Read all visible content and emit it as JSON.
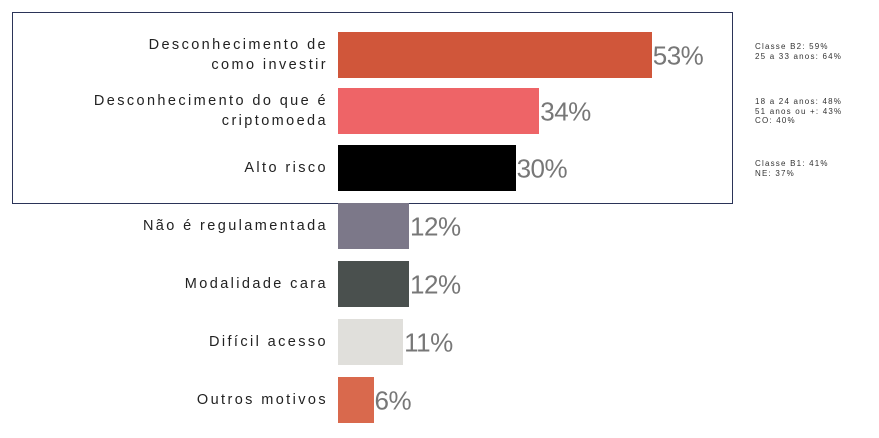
{
  "chart_data": {
    "type": "bar",
    "categories": [
      "Desconhecimento de\ncomo investir",
      "Desconhecimento do que é\ncriptomoeda",
      "Alto risco",
      "Não é regulamentada",
      "Modalidade cara",
      "Difícil acesso",
      "Outros motivos"
    ],
    "values": [
      53,
      34,
      30,
      12,
      12,
      11,
      6
    ],
    "value_labels": [
      "53%",
      "34%",
      "30%",
      "12%",
      "12%",
      "11%",
      "6%"
    ],
    "colors": [
      "#d0563a",
      "#ee6467",
      "#000000",
      "#7c7889",
      "#4a504e",
      "#e0dfdb",
      "#d9694d"
    ],
    "annotations": [
      "Classe B2: 59%\n25 a 33 anos: 64%",
      "18 a 24 anos: 48%\n51 anos ou +: 43%\nCO: 40%",
      "Classe B1: 41%\nNE: 37%"
    ]
  }
}
